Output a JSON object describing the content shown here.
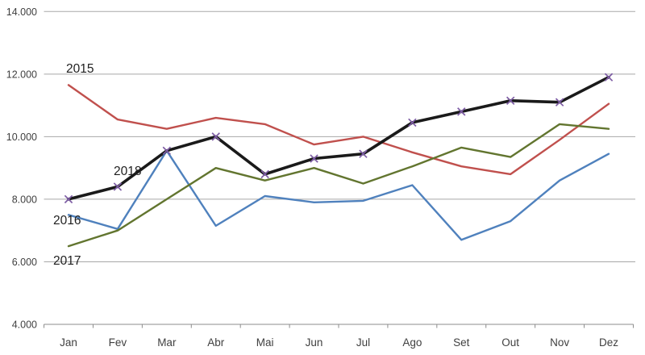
{
  "chart_data": {
    "type": "line",
    "title": "",
    "xlabel": "",
    "ylabel": "",
    "categories": [
      "Jan",
      "Fev",
      "Mar",
      "Abr",
      "Mai",
      "Jun",
      "Jul",
      "Ago",
      "Set",
      "Out",
      "Nov",
      "Dez"
    ],
    "series": [
      {
        "name": "2015",
        "color": "#C0504D",
        "line_width": 2.4,
        "marker": "none",
        "values": [
          11650,
          10550,
          10250,
          10600,
          10400,
          9750,
          10000,
          9500,
          9050,
          8800,
          9900,
          11050
        ]
      },
      {
        "name": "2016",
        "color": "#4F81BD",
        "line_width": 2.4,
        "marker": "none",
        "values": [
          7500,
          7050,
          9550,
          7150,
          8100,
          7900,
          7950,
          8450,
          6700,
          7300,
          8600,
          9450
        ]
      },
      {
        "name": "2017",
        "color": "#62752F",
        "line_width": 2.4,
        "marker": "none",
        "values": [
          6500,
          7000,
          8000,
          9000,
          8600,
          9000,
          8500,
          9050,
          9650,
          9350,
          10400,
          10250
        ]
      },
      {
        "name": "2018",
        "color": "#1A1A1A",
        "line_width": 3.6,
        "marker": "x",
        "marker_color": "#7D5CA4",
        "values": [
          8000,
          8400,
          9550,
          10000,
          8800,
          9300,
          9450,
          10450,
          10800,
          11150,
          11100,
          11900
        ]
      }
    ],
    "y_axis": {
      "min": 4000,
      "max": 14000,
      "step": 2000,
      "tick_labels_top_to_bottom": [
        "14.000",
        "12.000",
        "10.000",
        "8.000",
        "6.000",
        "4.000"
      ]
    },
    "grid": true,
    "legend_position": "none",
    "annotations": [
      {
        "text": "2015"
      },
      {
        "text": "2018"
      },
      {
        "text": "2016"
      },
      {
        "text": "2017"
      }
    ]
  }
}
